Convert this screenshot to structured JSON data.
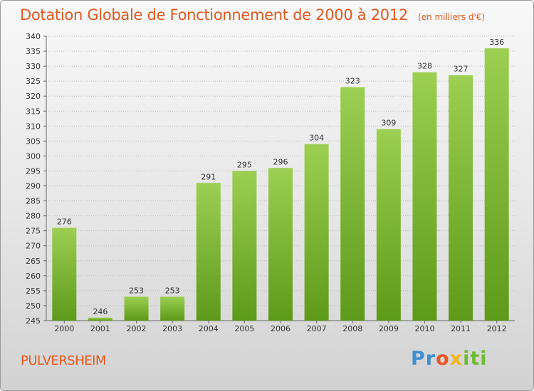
{
  "title": "Dotation Globale de Fonctionnement de 2000 à 2012",
  "title_unit": "(en milliers d'€)",
  "commune": "PULVERSHEIM",
  "logo": {
    "p": "Pr",
    "o": "o",
    "x": "x",
    "i": "iti"
  },
  "colors": {
    "title": "#e0591f",
    "bar_top": "#9ccf52",
    "bar_bottom": "#5e9a1a",
    "grid": "#b9b9b9"
  },
  "chart_data": {
    "type": "bar",
    "title": "Dotation Globale de Fonctionnement de 2000 à 2012",
    "subtitle": "(en milliers d'€)",
    "categories": [
      "2000",
      "2001",
      "2002",
      "2003",
      "2004",
      "2005",
      "2006",
      "2007",
      "2008",
      "2009",
      "2010",
      "2011",
      "2012"
    ],
    "values": [
      276,
      246,
      253,
      253,
      291,
      295,
      296,
      304,
      323,
      309,
      328,
      327,
      336
    ],
    "ylim": [
      245,
      340
    ],
    "yticks": [
      245,
      250,
      255,
      260,
      265,
      270,
      275,
      280,
      285,
      290,
      295,
      300,
      305,
      310,
      315,
      320,
      325,
      330,
      335,
      340
    ],
    "grid": true,
    "xlabel": "",
    "ylabel": ""
  }
}
